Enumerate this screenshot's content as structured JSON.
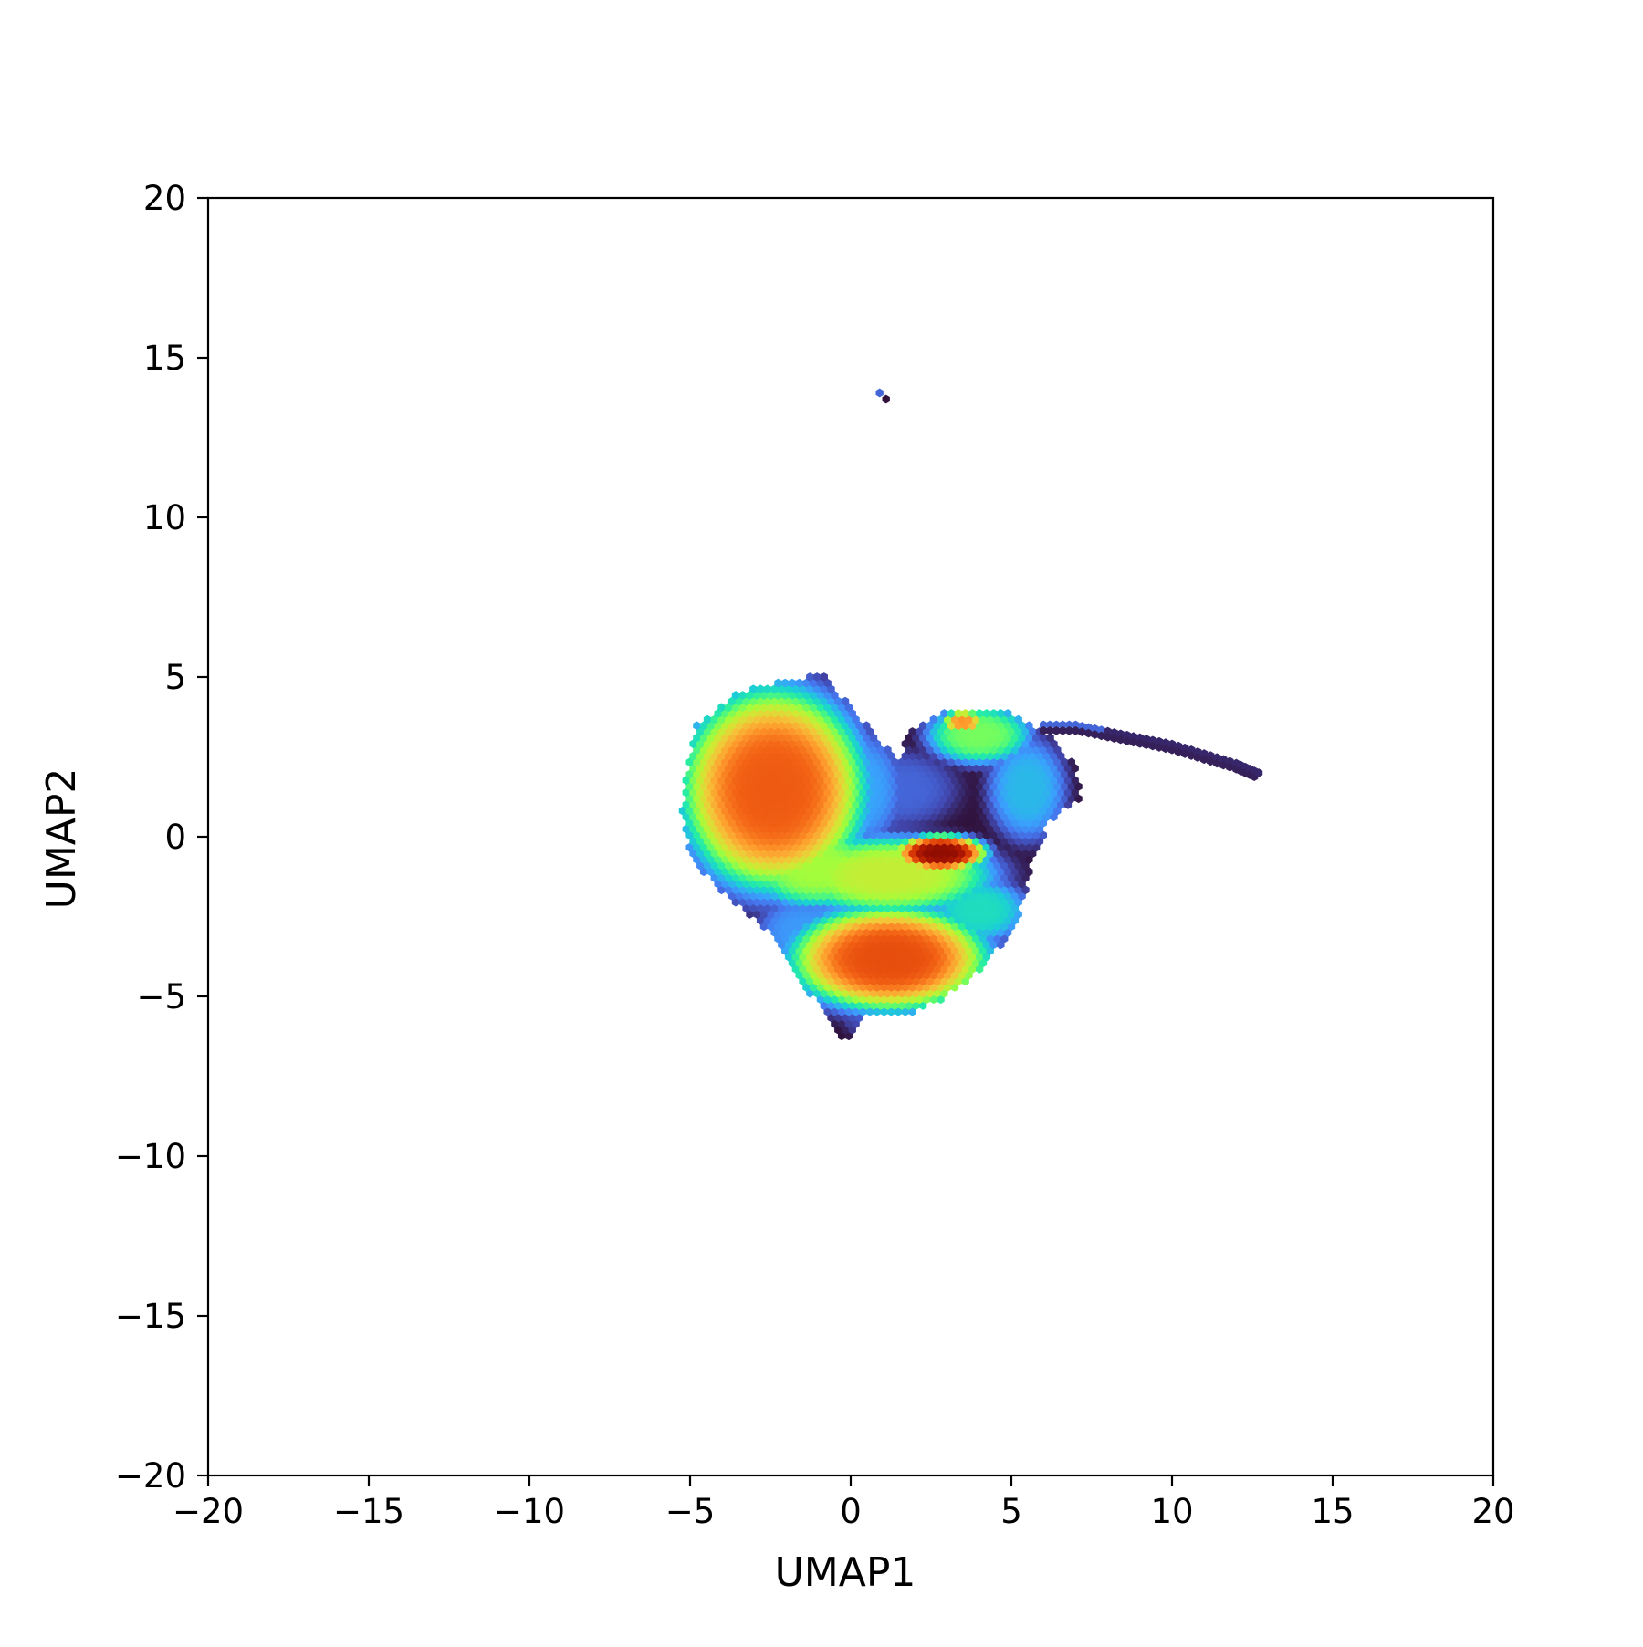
{
  "chart_data": {
    "type": "heatmap",
    "subtype": "hexbin-density",
    "title": "",
    "xlabel": "UMAP1",
    "ylabel": "UMAP2",
    "xlim": [
      -20,
      20
    ],
    "ylim": [
      -20,
      20
    ],
    "xticks": [
      -20,
      -15,
      -10,
      -5,
      0,
      5,
      10,
      15,
      20
    ],
    "yticks": [
      -20,
      -15,
      -10,
      -5,
      0,
      5,
      10,
      15,
      20
    ],
    "xtick_labels": [
      "−20",
      "−15",
      "−10",
      "−5",
      "0",
      "5",
      "10",
      "15",
      "20"
    ],
    "ytick_labels": [
      "−20",
      "−15",
      "−10",
      "−5",
      "0",
      "5",
      "10",
      "15",
      "20"
    ],
    "grid": false,
    "legend": "none",
    "colormap": "turbo",
    "colormap_stops": [
      "#30123b",
      "#4145ab",
      "#4675ed",
      "#39a2fc",
      "#1bcfd4",
      "#24eca6",
      "#61fc6c",
      "#a4fc3b",
      "#d1e834",
      "#f3c63a",
      "#fe9b2d",
      "#f36315",
      "#d93806",
      "#b11901",
      "#7a0403"
    ],
    "density_regions": [
      {
        "x": -2.4,
        "y": 1.5,
        "sx": 2.8,
        "sy": 3.1,
        "level": 0.8
      },
      {
        "x": 1.2,
        "y": -3.8,
        "sx": 3.0,
        "sy": 1.6,
        "level": 0.82
      },
      {
        "x": 2.8,
        "y": -0.5,
        "sx": 1.4,
        "sy": 0.55,
        "level": 0.97
      },
      {
        "x": 1.2,
        "y": -1.2,
        "sx": 3.2,
        "sy": 1.2,
        "level": 0.55
      },
      {
        "x": -1.0,
        "y": -1.0,
        "sx": 2.2,
        "sy": 1.2,
        "level": 0.5
      },
      {
        "x": 4.0,
        "y": 3.2,
        "sx": 1.6,
        "sy": 0.9,
        "level": 0.45
      },
      {
        "x": 3.5,
        "y": 3.6,
        "sx": 0.6,
        "sy": 0.35,
        "level": 0.72
      },
      {
        "x": 1.5,
        "y": 1.5,
        "sx": 1.8,
        "sy": 1.2,
        "level": 0.12
      },
      {
        "x": 5.5,
        "y": 1.5,
        "sx": 1.2,
        "sy": 1.6,
        "level": 0.25
      },
      {
        "x": 4.0,
        "y": -2.3,
        "sx": 1.5,
        "sy": 1.0,
        "level": 0.32
      },
      {
        "x": 0.3,
        "y": 1.5,
        "sx": 1.3,
        "sy": 1.8,
        "level": 0.22
      },
      {
        "x": -1.5,
        "y": -3.0,
        "sx": 1.4,
        "sy": 1.2,
        "level": 0.2
      },
      {
        "x": 0.3,
        "y": -5.6,
        "sx": 0.6,
        "sy": 0.6,
        "level": 0.08
      }
    ],
    "tail_points": [
      {
        "x": 6.0,
        "y": 3.5
      },
      {
        "x": 7.0,
        "y": 3.5
      },
      {
        "x": 8.0,
        "y": 3.3
      },
      {
        "x": 9.0,
        "y": 3.1
      },
      {
        "x": 10.0,
        "y": 2.9
      },
      {
        "x": 11.0,
        "y": 2.6
      },
      {
        "x": 12.0,
        "y": 2.3
      },
      {
        "x": 12.7,
        "y": 2.0
      }
    ],
    "outlier_points": [
      {
        "x": 0.9,
        "y": 13.9,
        "level": 0.12
      },
      {
        "x": 1.1,
        "y": 13.7,
        "level": 0.0
      }
    ],
    "hull": [
      [
        -5.3,
        0.8
      ],
      [
        -4.8,
        3.5
      ],
      [
        -3.5,
        4.5
      ],
      [
        -2.5,
        4.8
      ],
      [
        -0.9,
        5.1
      ],
      [
        0.5,
        3.5
      ],
      [
        1.5,
        2.4
      ],
      [
        1.8,
        3.3
      ],
      [
        3.0,
        4.0
      ],
      [
        5.0,
        3.9
      ],
      [
        6.2,
        3.2
      ],
      [
        7.0,
        2.2
      ],
      [
        7.2,
        1.2
      ],
      [
        6.2,
        0.5
      ],
      [
        5.6,
        -1.0
      ],
      [
        5.2,
        -2.8
      ],
      [
        4.0,
        -4.2
      ],
      [
        3.0,
        -5.0
      ],
      [
        2.0,
        -5.5
      ],
      [
        0.5,
        -5.6
      ],
      [
        -0.2,
        -6.4
      ],
      [
        -1.5,
        -4.6
      ],
      [
        -2.5,
        -3.0
      ],
      [
        -4.3,
        -1.5
      ],
      [
        -5.0,
        -0.5
      ]
    ]
  }
}
